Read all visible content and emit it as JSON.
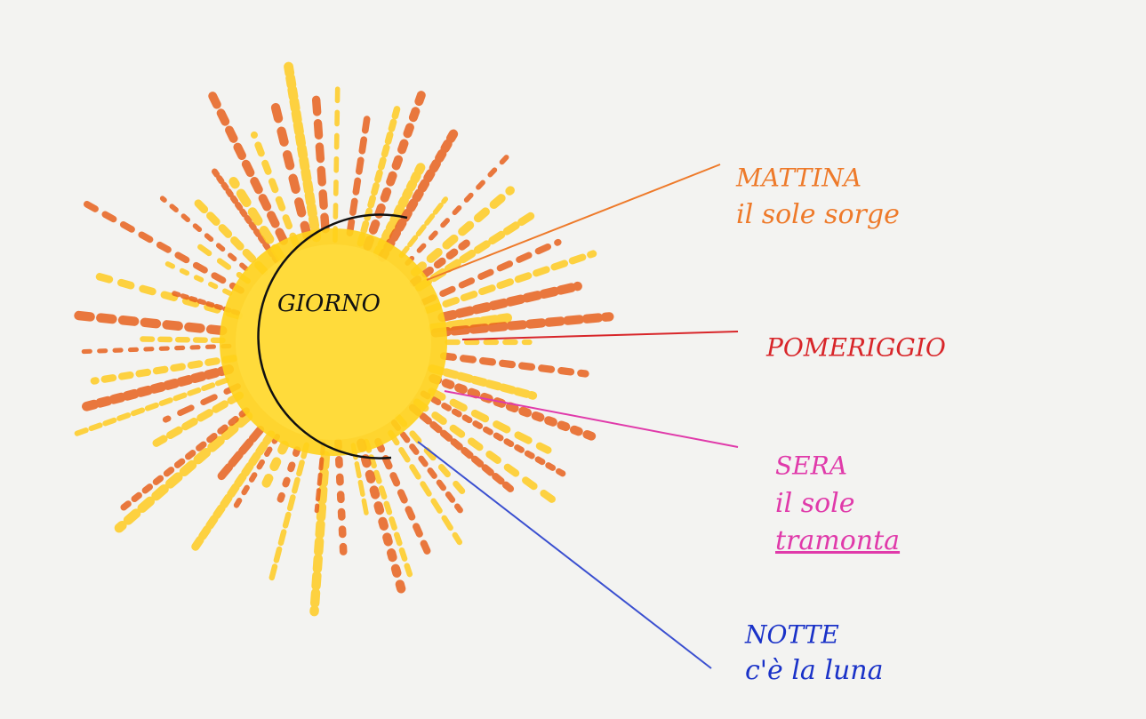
{
  "center": {
    "label": "GIORNO"
  },
  "parts": [
    {
      "title": "MATTINA",
      "lines": [
        "il sole sorge"
      ]
    },
    {
      "title": "POMERIGGIO",
      "lines": []
    },
    {
      "title": "SERA",
      "lines": [
        "il sole",
        "tramonta"
      ]
    },
    {
      "title": "NOTTE",
      "lines": [
        "c'è la luna"
      ]
    }
  ]
}
